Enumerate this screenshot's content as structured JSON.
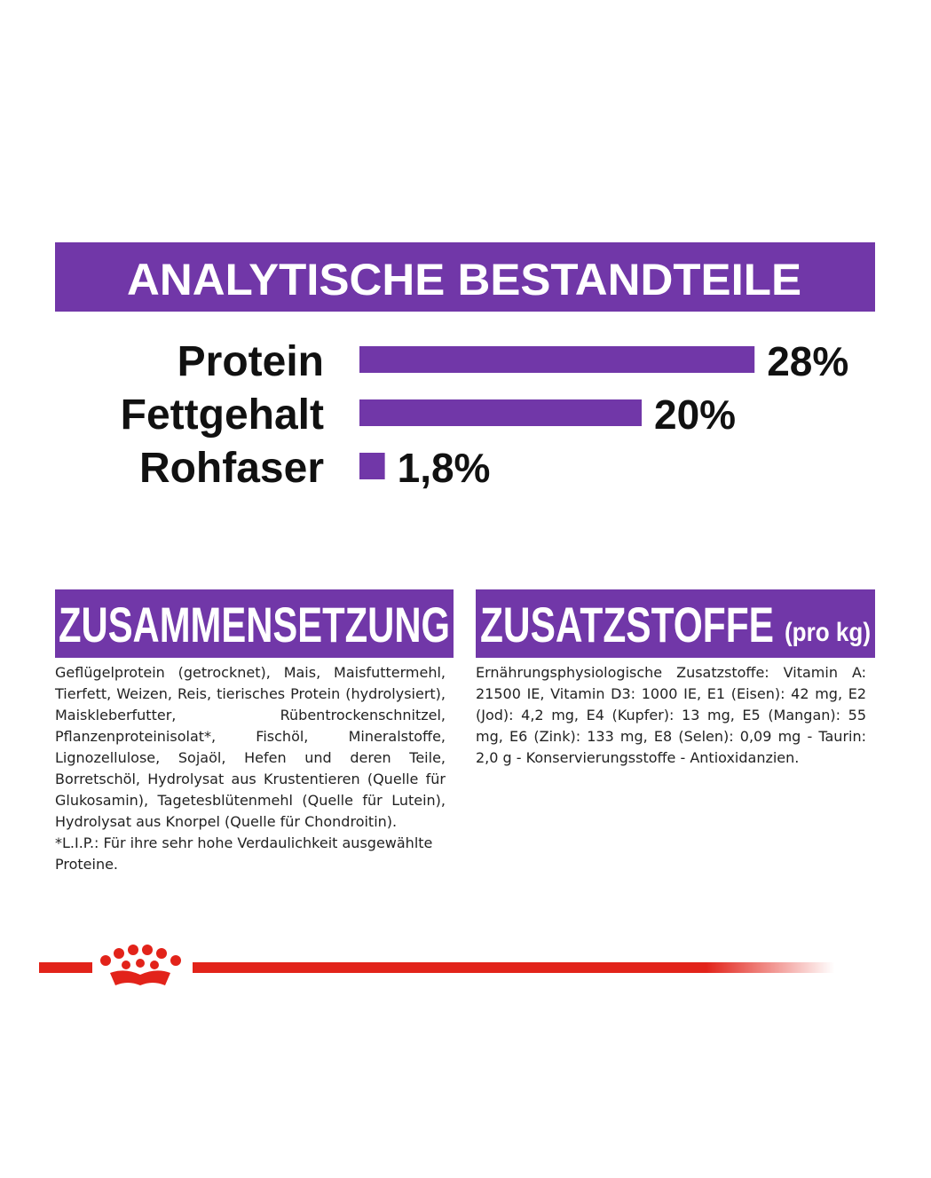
{
  "chart_data": {
    "type": "bar",
    "title": "ANALYTISCHE BESTANDTEILE",
    "categories": [
      "Protein",
      "Fettgehalt",
      "Rohfaser"
    ],
    "values": [
      28,
      20,
      1.8
    ],
    "value_labels": [
      "28%",
      "20%",
      "1,8%"
    ],
    "color": "#7137a8"
  },
  "composition": {
    "title": "ZUSAMMENSETZUNG",
    "text": "Geflügelprotein (getrocknet), Mais, Maisfuttermehl, Tierfett, Weizen, Reis, tierisches Protein (hydrolysiert), Maiskleberfutter, Rübentrockenschnitzel, Pflanzenproteinisolat*, Fischöl, Mineralstoffe, Lignozellulose, Sojaöl, Hefen und deren Teile, Borretschöl, Hydrolysat aus Krustentieren (Quelle für Glukosamin), Tagetesblütenmehl (Quelle für Lutein), Hydrolysat aus Knorpel (Quelle für Chondroitin).",
    "footnote": "*L.I.P.: Für ihre sehr hohe Verdaulichkeit ausgewählte Proteine."
  },
  "additives": {
    "title": "ZUSATZSTOFFE",
    "unit": "(pro kg)",
    "text": "Ernährungsphysiologische Zusatzstoffe: Vitamin A: 21500 IE, Vitamin D3: 1000 IE, E1 (Eisen): 42 mg, E2 (Jod): 4,2 mg, E4 (Kupfer): 13 mg, E5 (Mangan): 55 mg, E6 (Zink): 133 mg, E8 (Selen): 0,09 mg - Taurin: 2,0 g - Konservierungsstoffe - Antioxidanzien."
  }
}
